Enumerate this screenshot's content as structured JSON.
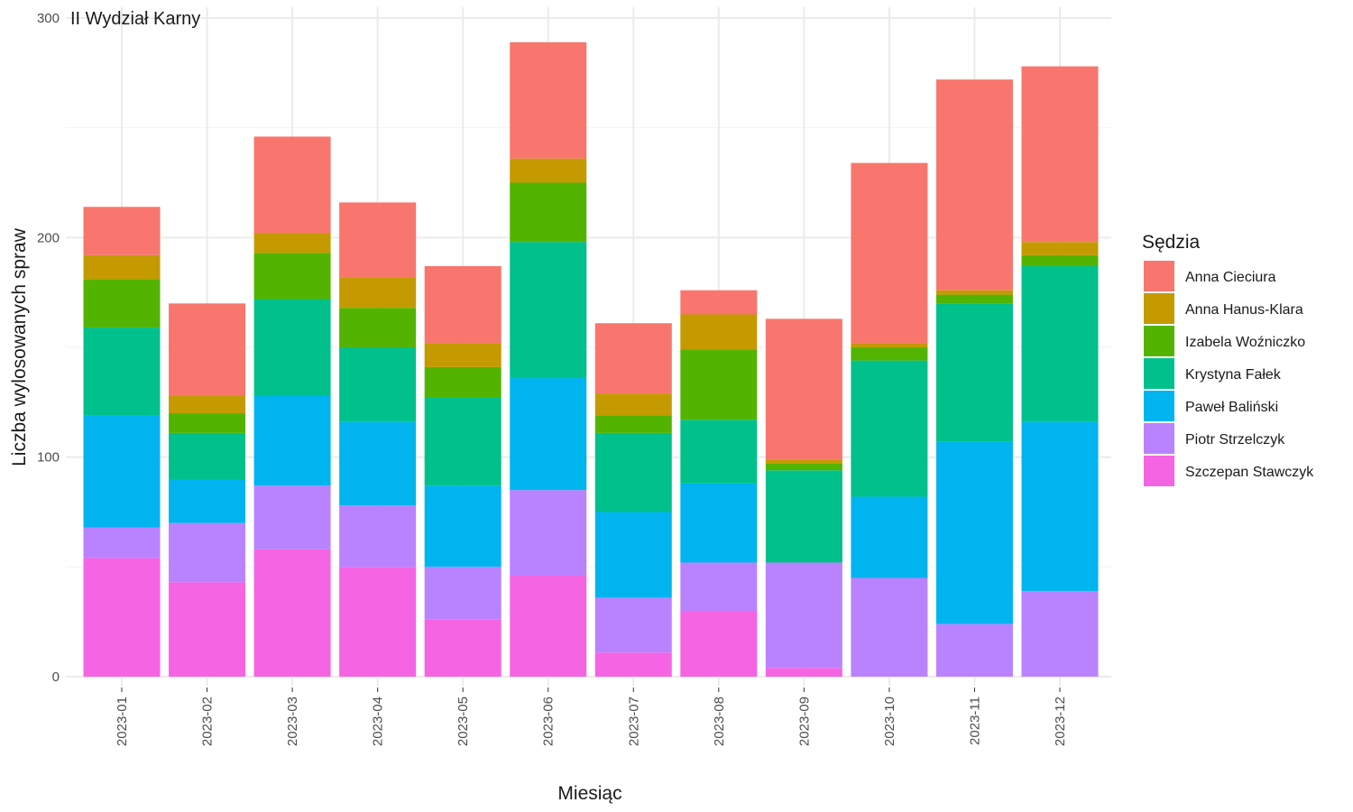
{
  "chart_data": {
    "type": "bar",
    "stacked": true,
    "title": "II Wydział Karny",
    "xlabel": "Miesiąc",
    "ylabel": "Liczba wylosowanych spraw",
    "ylim": [
      0,
      300
    ],
    "yticks": [
      0,
      100,
      200,
      300
    ],
    "grid": true,
    "legend_title": "Sędzia",
    "legend_position": "right",
    "categories": [
      "2023-01",
      "2023-02",
      "2023-03",
      "2023-04",
      "2023-05",
      "2023-06",
      "2023-07",
      "2023-08",
      "2023-09",
      "2023-10",
      "2023-11",
      "2023-12"
    ],
    "series": [
      {
        "name": "Szczepan Stawczyk",
        "color": "#F564E3",
        "values": [
          54,
          43,
          58,
          50,
          26,
          46,
          11,
          30,
          4,
          0,
          0,
          0
        ]
      },
      {
        "name": "Piotr Strzelczyk",
        "color": "#B983FF",
        "values": [
          14,
          27,
          29,
          28,
          24,
          39,
          25,
          22,
          48,
          45,
          24,
          39
        ]
      },
      {
        "name": "Paweł Baliński",
        "color": "#00B4EF",
        "values": [
          51,
          20,
          41,
          38,
          37,
          51,
          39,
          36,
          0,
          37,
          83,
          77
        ]
      },
      {
        "name": "Krystyna Fałek",
        "color": "#00C08B",
        "values": [
          40,
          21,
          44,
          34,
          40,
          62,
          36,
          29,
          42,
          62,
          63,
          71
        ]
      },
      {
        "name": "Izabela Woźniczko",
        "color": "#53B400",
        "values": [
          22,
          9,
          21,
          18,
          14,
          27,
          8,
          32,
          3,
          6,
          4,
          5
        ]
      },
      {
        "name": "Anna Hanus-Klara",
        "color": "#C49A00",
        "values": [
          11,
          8,
          9,
          14,
          11,
          11,
          10,
          16,
          2,
          2,
          2,
          6
        ]
      },
      {
        "name": "Anna Cieciura",
        "color": "#F8766D",
        "values": [
          22,
          42,
          44,
          34,
          35,
          53,
          32,
          11,
          64,
          82,
          96,
          80
        ]
      }
    ]
  }
}
